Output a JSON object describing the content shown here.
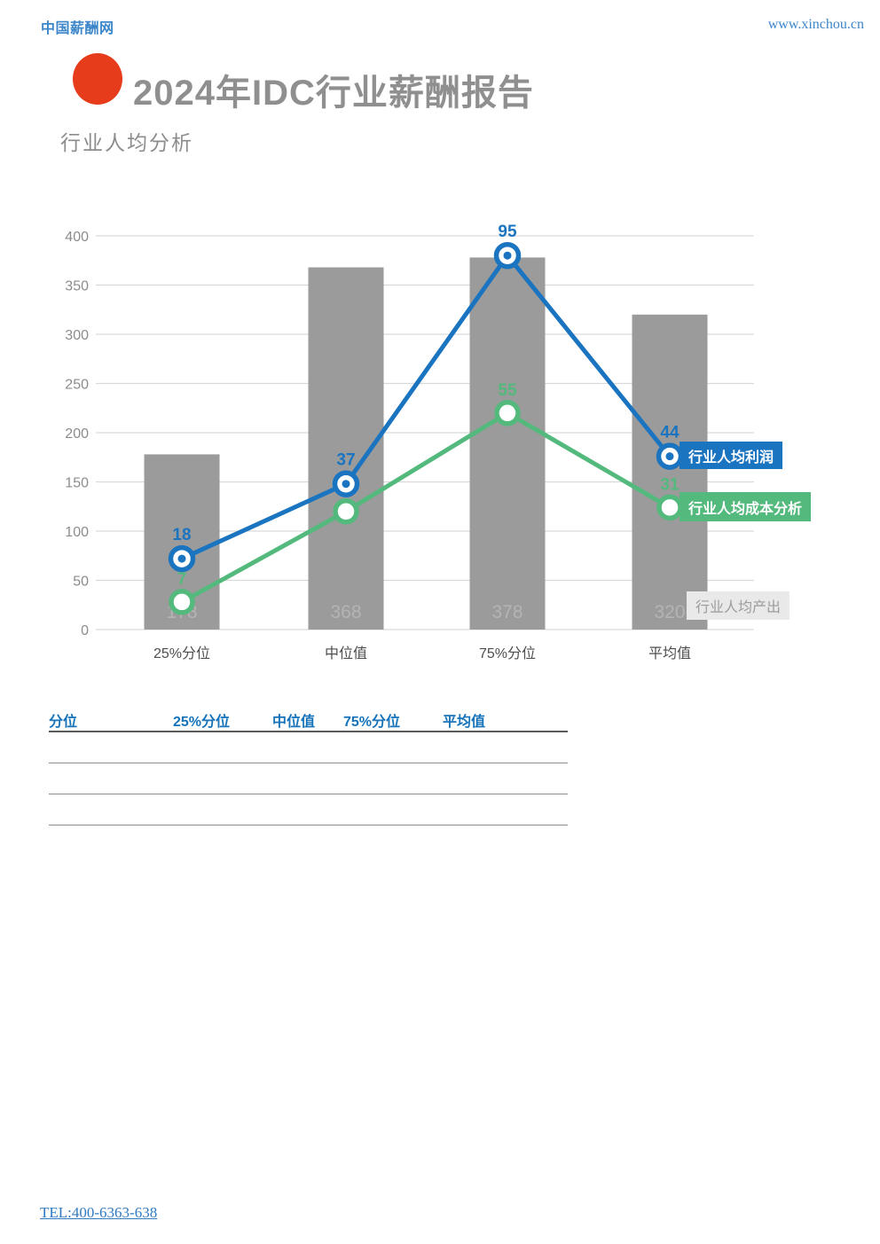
{
  "header": {
    "site_name": "中国薪酬网",
    "site_url": "www.xinchou.cn"
  },
  "title": "2024年IDC行业薪酬报告",
  "subtitle": "行业人均分析",
  "chart_data": {
    "type": "combo-bar-line",
    "categories": [
      "25%分位",
      "中位值",
      "75%分位",
      "平均值"
    ],
    "series": [
      {
        "name": "行业人均产出",
        "type": "bar",
        "axis": "left",
        "values": [
          178,
          368,
          378,
          320
        ],
        "color": "#9b9b9b",
        "label_color": "#b4b4b4"
      },
      {
        "name": "行业人均利润",
        "type": "line",
        "axis": "right",
        "values": [
          18,
          37,
          95,
          44
        ],
        "color": "#1b74c0"
      },
      {
        "name": "行业人均成本分析",
        "type": "line",
        "axis": "right",
        "values": [
          7,
          30,
          55,
          31
        ],
        "color": "#53b97c"
      }
    ],
    "left_axis": {
      "min": 0,
      "max": 400,
      "step": 50,
      "ticks": [
        0,
        50,
        100,
        150,
        200,
        250,
        300,
        350,
        400
      ]
    },
    "right_axis": {
      "min": 0,
      "max": 100,
      "shown": false
    },
    "grid": true,
    "legend_position": "right-overlay",
    "title": "行业人均分析"
  },
  "legend": {
    "profit": "行业人均利润",
    "cost": "行业人均成本分析",
    "output": "行业人均产出"
  },
  "table": {
    "headers": [
      "分位",
      "25%分位",
      "中位值",
      "75%分位",
      "平均值"
    ],
    "rows": [
      [
        "",
        "",
        "",
        "",
        ""
      ],
      [
        "",
        "",
        "",
        "",
        ""
      ],
      [
        "",
        "",
        "",
        "",
        ""
      ]
    ]
  },
  "footer": {
    "tel": "TEL:400-6363-638"
  },
  "colors": {
    "link_blue": "#3c86c9",
    "title_gray": "#8f8f8f",
    "logo_red": "#e63c1b",
    "bar_gray": "#9b9b9b",
    "profit_blue": "#1b74c0",
    "cost_green": "#53b97c",
    "grid_gray": "#d9d9d9",
    "axis_label_gray": "#8c8c8c",
    "x_label_gray": "#4d4d4d",
    "table_header_blue": "#1673b9"
  }
}
